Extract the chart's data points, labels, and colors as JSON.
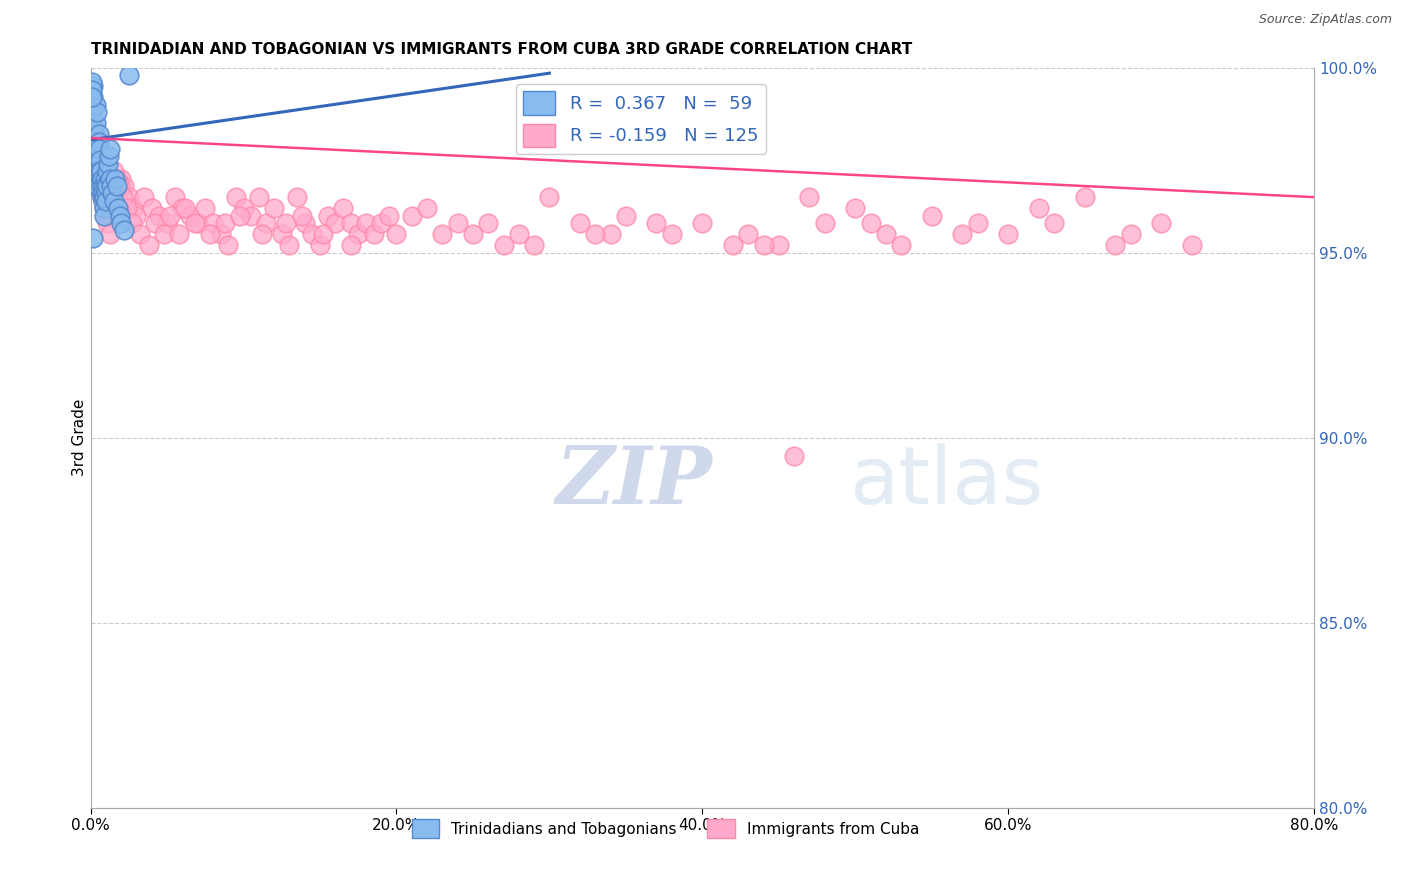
{
  "title": "TRINIDADIAN AND TOBAGONIAN VS IMMIGRANTS FROM CUBA 3RD GRADE CORRELATION CHART",
  "source": "Source: ZipAtlas.com",
  "ylabel": "3rd Grade",
  "x_min": 0.0,
  "x_max": 80.0,
  "y_min": 80.0,
  "y_max": 100.0,
  "x_ticks": [
    0.0,
    20.0,
    40.0,
    60.0,
    80.0
  ],
  "y_ticks": [
    80.0,
    85.0,
    90.0,
    95.0,
    100.0
  ],
  "blue_color": "#88BBEE",
  "pink_color": "#FFAACC",
  "blue_edge_color": "#5588CC",
  "pink_edge_color": "#FF88AA",
  "blue_line_color": "#3366BB",
  "pink_line_color": "#FF4488",
  "legend_R1": "0.367",
  "legend_N1": "59",
  "legend_R2": "-0.159",
  "legend_N2": "125",
  "legend_label1": "Trinidadians and Tobagonians",
  "legend_label2": "Immigrants from Cuba",
  "watermark_zip": "ZIP",
  "watermark_atlas": "atlas",
  "watermark_color_zip": "#AABBDD",
  "watermark_color_atlas": "#CCDDEE",
  "grid_color": "#CCCCCC",
  "blue_x": [
    0.05,
    0.08,
    0.1,
    0.12,
    0.15,
    0.18,
    0.2,
    0.22,
    0.25,
    0.28,
    0.3,
    0.32,
    0.35,
    0.38,
    0.4,
    0.42,
    0.45,
    0.48,
    0.5,
    0.52,
    0.55,
    0.58,
    0.6,
    0.62,
    0.65,
    0.68,
    0.7,
    0.72,
    0.75,
    0.78,
    0.8,
    0.82,
    0.85,
    0.88,
    0.9,
    0.92,
    0.95,
    0.98,
    1.0,
    1.05,
    1.1,
    1.15,
    1.2,
    1.25,
    1.3,
    1.35,
    1.4,
    1.5,
    1.6,
    1.7,
    1.8,
    1.9,
    2.0,
    2.2,
    2.5,
    0.06,
    0.09,
    0.11,
    0.14
  ],
  "blue_y": [
    99.0,
    98.5,
    97.8,
    98.8,
    99.5,
    99.2,
    98.2,
    97.5,
    97.2,
    96.8,
    97.0,
    98.0,
    98.5,
    99.0,
    98.8,
    97.6,
    97.4,
    96.8,
    97.2,
    98.2,
    98.0,
    97.8,
    97.5,
    97.2,
    97.0,
    96.8,
    97.2,
    96.5,
    97.0,
    96.8,
    96.6,
    96.4,
    96.2,
    96.0,
    96.5,
    97.0,
    96.8,
    96.6,
    96.4,
    97.2,
    96.8,
    97.4,
    97.6,
    97.8,
    97.0,
    96.8,
    96.6,
    96.4,
    97.0,
    96.8,
    96.2,
    96.0,
    95.8,
    95.6,
    99.8,
    99.6,
    99.4,
    99.2,
    95.4
  ],
  "pink_x": [
    0.1,
    0.2,
    0.3,
    0.4,
    0.5,
    0.6,
    0.7,
    0.8,
    0.9,
    1.0,
    1.2,
    1.4,
    1.6,
    1.8,
    2.0,
    2.2,
    2.5,
    2.8,
    3.0,
    3.5,
    4.0,
    4.5,
    5.0,
    5.5,
    6.0,
    6.5,
    7.0,
    7.5,
    8.0,
    8.5,
    9.0,
    9.5,
    10.0,
    10.5,
    11.0,
    11.5,
    12.0,
    12.5,
    13.0,
    13.5,
    14.0,
    14.5,
    15.0,
    15.5,
    16.0,
    16.5,
    17.0,
    17.5,
    18.0,
    18.5,
    19.0,
    20.0,
    21.0,
    22.0,
    23.0,
    24.0,
    25.0,
    26.0,
    27.0,
    28.0,
    29.0,
    30.0,
    32.0,
    34.0,
    35.0,
    37.0,
    38.0,
    40.0,
    42.0,
    43.0,
    45.0,
    47.0,
    48.0,
    50.0,
    52.0,
    53.0,
    55.0,
    57.0,
    58.0,
    60.0,
    62.0,
    63.0,
    65.0,
    67.0,
    68.0,
    70.0,
    72.0,
    0.15,
    0.25,
    0.35,
    0.45,
    0.55,
    0.65,
    0.75,
    0.85,
    0.95,
    1.1,
    1.3,
    1.5,
    1.7,
    1.9,
    2.1,
    2.4,
    2.7,
    3.2,
    3.8,
    4.2,
    4.8,
    5.2,
    5.8,
    6.2,
    6.8,
    7.8,
    8.8,
    9.8,
    11.2,
    12.8,
    13.8,
    15.2,
    17.0,
    19.5,
    33.0,
    44.0,
    51.0,
    46.0
  ],
  "pink_y": [
    98.8,
    98.5,
    98.2,
    97.8,
    97.5,
    97.2,
    97.0,
    96.8,
    96.5,
    96.2,
    96.8,
    96.5,
    96.2,
    96.0,
    97.0,
    96.8,
    96.5,
    96.2,
    96.0,
    96.5,
    96.2,
    96.0,
    95.8,
    96.5,
    96.2,
    96.0,
    95.8,
    96.2,
    95.8,
    95.5,
    95.2,
    96.5,
    96.2,
    96.0,
    96.5,
    95.8,
    96.2,
    95.5,
    95.2,
    96.5,
    95.8,
    95.5,
    95.2,
    96.0,
    95.8,
    96.2,
    95.8,
    95.5,
    95.8,
    95.5,
    95.8,
    95.5,
    96.0,
    96.2,
    95.5,
    95.8,
    95.5,
    95.8,
    95.2,
    95.5,
    95.2,
    96.5,
    95.8,
    95.5,
    96.0,
    95.8,
    95.5,
    95.8,
    95.2,
    95.5,
    95.2,
    96.5,
    95.8,
    96.2,
    95.5,
    95.2,
    96.0,
    95.5,
    95.8,
    95.5,
    96.2,
    95.8,
    96.5,
    95.2,
    95.5,
    95.8,
    95.2,
    98.2,
    97.8,
    97.5,
    97.2,
    97.0,
    96.8,
    96.5,
    96.2,
    96.0,
    95.8,
    95.5,
    97.2,
    97.0,
    96.8,
    96.5,
    96.2,
    95.8,
    95.5,
    95.2,
    95.8,
    95.5,
    96.0,
    95.5,
    96.2,
    95.8,
    95.5,
    95.8,
    96.0,
    95.5,
    95.8,
    96.0,
    95.5,
    95.2,
    96.0,
    95.5,
    95.2,
    95.8,
    89.5
  ],
  "blue_trend_x": [
    0.0,
    30.0
  ],
  "blue_trend_y": [
    98.05,
    99.85
  ],
  "pink_trend_x": [
    0.0,
    80.0
  ],
  "pink_trend_y": [
    98.1,
    96.5
  ]
}
